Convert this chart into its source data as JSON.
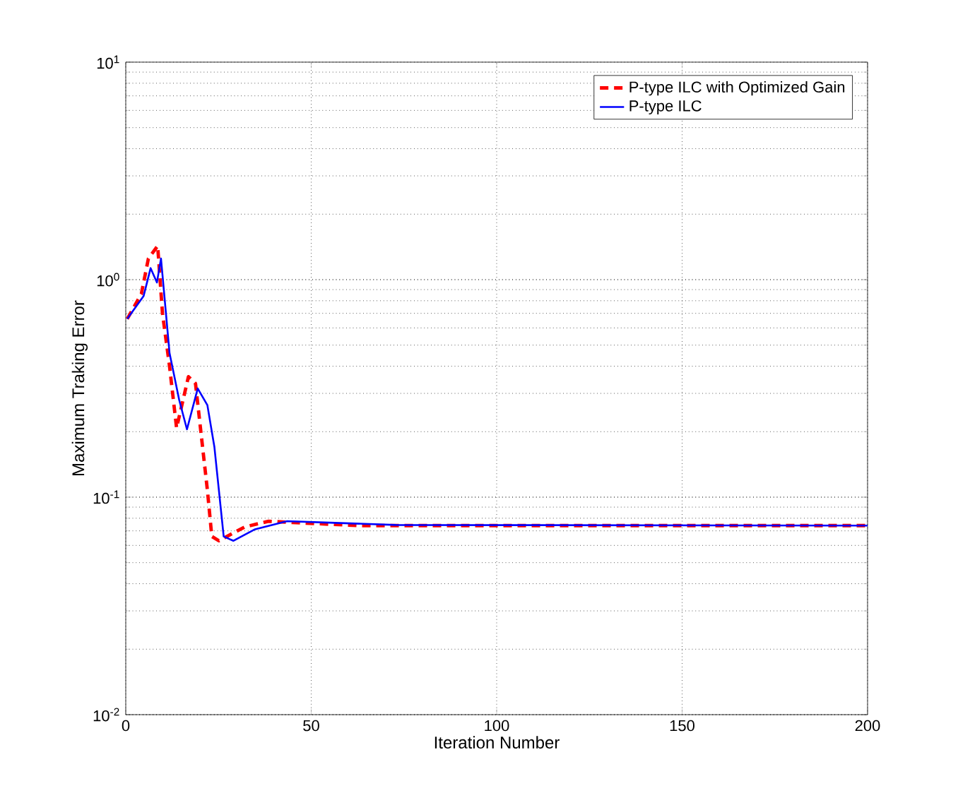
{
  "chart_data": {
    "type": "line",
    "xlabel": "Iteration Number",
    "ylabel": "Maximum Traking Error",
    "log": "y",
    "grid": true,
    "legend": "top right",
    "marker": "none",
    "xlim": [
      0,
      200
    ],
    "xticks": [
      0,
      50,
      100,
      150,
      200
    ],
    "ylim": [
      0.01,
      10
    ],
    "yticks": [
      {
        "value": 0.01,
        "label": "10$^{-2}$"
      },
      {
        "value": 0.1,
        "label": "10$^{-1}$"
      },
      {
        "value": 1,
        "label": "10$^{0}$"
      },
      {
        "value": 10,
        "label": "10$^{1}$"
      }
    ],
    "series": [
      {
        "name": "P-type ILC with Optimized Gain",
        "color": "#ff0000",
        "line_style": "dashed",
        "x": [
          0.4,
          4.2,
          6.1,
          8.6,
          9.9,
          11.8,
          13.7,
          16.9,
          18.8,
          22,
          23.2,
          25.1,
          32.1,
          38.5,
          44.8,
          62.6,
          200
        ],
        "values": [
          0.66,
          0.86,
          1.25,
          1.43,
          0.7,
          0.4,
          0.208,
          0.358,
          0.333,
          0.108,
          0.066,
          0.063,
          0.073,
          0.0775,
          0.0765,
          0.074,
          0.074
        ]
      },
      {
        "name": "P-type ILC",
        "color": "#0000ff",
        "line_style": "solid",
        "x": [
          0.4,
          4.8,
          6.7,
          8.4,
          9.5,
          11.8,
          14.4,
          16.5,
          19.4,
          22,
          23.9,
          26.4,
          29,
          34.7,
          43.5,
          53.7,
          72.8,
          200
        ],
        "values": [
          0.66,
          0.84,
          1.13,
          0.97,
          1.25,
          0.46,
          0.28,
          0.205,
          0.316,
          0.265,
          0.17,
          0.066,
          0.063,
          0.071,
          0.0776,
          0.0765,
          0.0745,
          0.074
        ]
      }
    ]
  }
}
